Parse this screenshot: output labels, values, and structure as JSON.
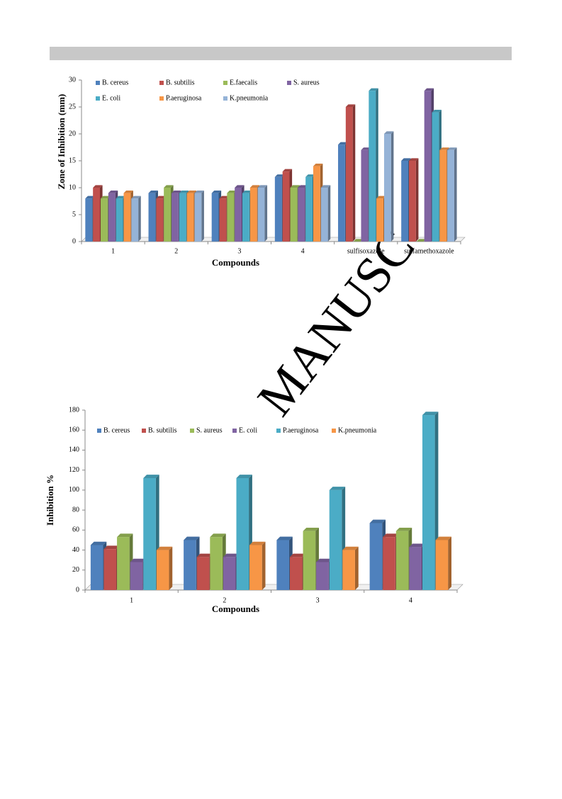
{
  "watermark": "MANUSC",
  "chart_data": [
    {
      "type": "bar",
      "xlabel": "Compounds",
      "ylabel": "Zone of Inhibition (mm)",
      "categories": [
        "1",
        "2",
        "3",
        "4",
        "sulfisoxazole",
        "sulfamethoxazole"
      ],
      "series": [
        {
          "name": "B. cereus",
          "color": "#4f81bd",
          "values": [
            8,
            9,
            9,
            12,
            18,
            15
          ]
        },
        {
          "name": "B. subtilis",
          "color": "#c0504d",
          "values": [
            10,
            8,
            8,
            13,
            25,
            15
          ]
        },
        {
          "name": "E.faecalis",
          "color": "#9bbb59",
          "values": [
            8,
            10,
            9,
            10,
            0,
            0
          ]
        },
        {
          "name": "S. aureus",
          "color": "#8064a2",
          "values": [
            9,
            9,
            10,
            10,
            17,
            28
          ]
        },
        {
          "name": "E. coli",
          "color": "#4bacc6",
          "values": [
            8,
            9,
            9,
            12,
            28,
            24
          ]
        },
        {
          "name": "P.aeruginosa",
          "color": "#f79646",
          "values": [
            9,
            9,
            10,
            14,
            8,
            17
          ]
        },
        {
          "name": "K.pneumonia",
          "color": "#95b3d7",
          "values": [
            8,
            9,
            10,
            10,
            20,
            17
          ]
        }
      ],
      "ylim": [
        0,
        30
      ],
      "yticks": [
        0,
        5,
        10,
        15,
        20,
        25,
        30
      ],
      "legend": "top"
    },
    {
      "type": "bar",
      "xlabel": "Compounds",
      "ylabel": "Inhibition %",
      "categories": [
        "1",
        "2",
        "3",
        "4"
      ],
      "series": [
        {
          "name": "B. cereus",
          "color": "#4f81bd",
          "values": [
            45,
            50,
            50,
            67
          ]
        },
        {
          "name": "B. subtilis",
          "color": "#c0504d",
          "values": [
            41,
            33,
            33,
            53
          ]
        },
        {
          "name": "S. aureus",
          "color": "#9bbb59",
          "values": [
            53,
            53,
            59,
            59
          ]
        },
        {
          "name": "E. coli",
          "color": "#8064a2",
          "values": [
            28,
            33,
            28,
            43
          ]
        },
        {
          "name": "P.aeruginosa",
          "color": "#4bacc6",
          "values": [
            112,
            112,
            100,
            175
          ]
        },
        {
          "name": "K.pneumonia",
          "color": "#f79646",
          "values": [
            40,
            45,
            40,
            50
          ]
        }
      ],
      "ylim": [
        0,
        180
      ],
      "yticks": [
        0,
        20,
        40,
        60,
        80,
        100,
        120,
        140,
        160,
        180
      ],
      "legend": "top"
    }
  ]
}
